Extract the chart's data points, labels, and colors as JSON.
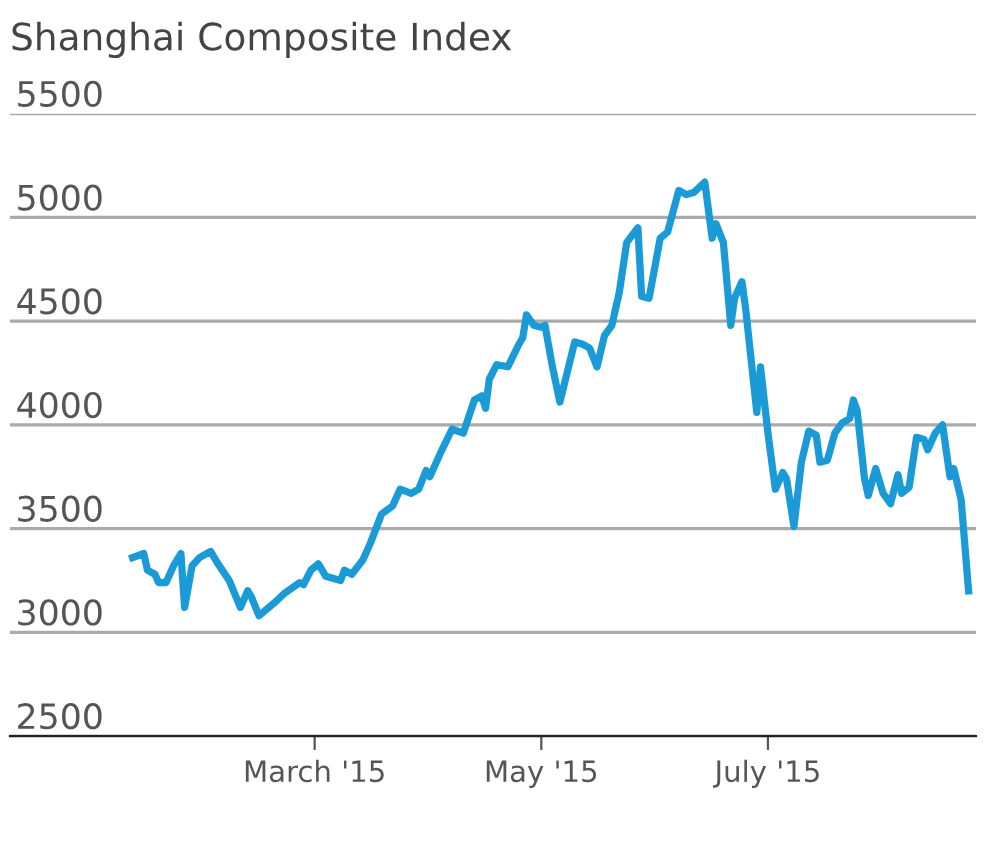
{
  "chart_data": {
    "type": "line",
    "title": "Shanghai Composite Index",
    "x": [
      "2015-01-11",
      "2015-01-14",
      "2015-01-15",
      "2015-01-17",
      "2015-01-18",
      "2015-01-20",
      "2015-01-22",
      "2015-01-24",
      "2015-01-25",
      "2015-01-27",
      "2015-01-29",
      "2015-02-01",
      "2015-02-03",
      "2015-02-06",
      "2015-02-09",
      "2015-02-11",
      "2015-02-12",
      "2015-02-14",
      "2015-02-18",
      "2015-02-21",
      "2015-02-25",
      "2015-02-26",
      "2015-02-28",
      "2015-03-02",
      "2015-03-04",
      "2015-03-08",
      "2015-03-09",
      "2015-03-11",
      "2015-03-14",
      "2015-03-16",
      "2015-03-19",
      "2015-03-22",
      "2015-03-24",
      "2015-03-27",
      "2015-03-29",
      "2015-03-31",
      "2015-04-01",
      "2015-04-04",
      "2015-04-07",
      "2015-04-10",
      "2015-04-13",
      "2015-04-15",
      "2015-04-16",
      "2015-04-17",
      "2015-04-19",
      "2015-04-22",
      "2015-04-25",
      "2015-04-26",
      "2015-04-27",
      "2015-04-29",
      "2015-05-01",
      "2015-05-02",
      "2015-05-04",
      "2015-05-06",
      "2015-05-10",
      "2015-05-12",
      "2015-05-14",
      "2015-05-16",
      "2015-05-18",
      "2015-05-20",
      "2015-05-22",
      "2015-05-24",
      "2015-05-27",
      "2015-05-28",
      "2015-05-30",
      "2015-06-02",
      "2015-06-04",
      "2015-06-07",
      "2015-06-09",
      "2015-06-11",
      "2015-06-14",
      "2015-06-16",
      "2015-06-17",
      "2015-06-19",
      "2015-06-21",
      "2015-06-22",
      "2015-06-24",
      "2015-06-25",
      "2015-06-28",
      "2015-06-29",
      "2015-07-01",
      "2015-07-03",
      "2015-07-05",
      "2015-07-06",
      "2015-07-08",
      "2015-07-10",
      "2015-07-12",
      "2015-07-14",
      "2015-07-15",
      "2015-07-17",
      "2015-07-19",
      "2015-07-21",
      "2015-07-23",
      "2015-07-24",
      "2015-07-25",
      "2015-07-27",
      "2015-07-28",
      "2015-07-30",
      "2015-08-01",
      "2015-08-03",
      "2015-08-05",
      "2015-08-06",
      "2015-08-08",
      "2015-08-10",
      "2015-08-12",
      "2015-08-13",
      "2015-08-15",
      "2015-08-17",
      "2015-08-19",
      "2015-08-20",
      "2015-08-22",
      "2015-08-24"
    ],
    "series": [
      {
        "color": "#1b9ad8",
        "values": [
          3360,
          3380,
          3300,
          3280,
          3240,
          3240,
          3320,
          3380,
          3120,
          3320,
          3360,
          3390,
          3330,
          3250,
          3120,
          3200,
          3170,
          3080,
          3140,
          3190,
          3240,
          3230,
          3300,
          3330,
          3270,
          3250,
          3300,
          3280,
          3350,
          3430,
          3570,
          3610,
          3690,
          3670,
          3690,
          3780,
          3750,
          3870,
          3980,
          3960,
          4120,
          4140,
          4080,
          4220,
          4290,
          4280,
          4390,
          4420,
          4530,
          4480,
          4470,
          4480,
          4280,
          4110,
          4400,
          4390,
          4370,
          4280,
          4430,
          4480,
          4640,
          4880,
          4950,
          4620,
          4610,
          4900,
          4930,
          5130,
          5110,
          5120,
          5170,
          4900,
          4970,
          4880,
          4480,
          4610,
          4690,
          4560,
          4060,
          4280,
          3960,
          3690,
          3770,
          3740,
          3510,
          3820,
          3970,
          3950,
          3820,
          3830,
          3960,
          4010,
          4030,
          4120,
          4070,
          3740,
          3660,
          3790,
          3670,
          3620,
          3760,
          3670,
          3700,
          3940,
          3930,
          3880,
          3960,
          4000,
          3750,
          3790,
          3640,
          3200
        ]
      }
    ],
    "xlim": [
      "2014-12-09",
      "2015-08-26"
    ],
    "xticks": [
      {
        "value": "2015-03-01",
        "label": "March '15"
      },
      {
        "value": "2015-05-01",
        "label": "May '15"
      },
      {
        "value": "2015-07-01",
        "label": "July '15"
      }
    ],
    "ylim": [
      2500,
      5500
    ],
    "yticks": [
      2500,
      3000,
      3500,
      4000,
      4500,
      5000,
      5500
    ],
    "grid": "y",
    "marker": "none",
    "line_style": "solid"
  }
}
